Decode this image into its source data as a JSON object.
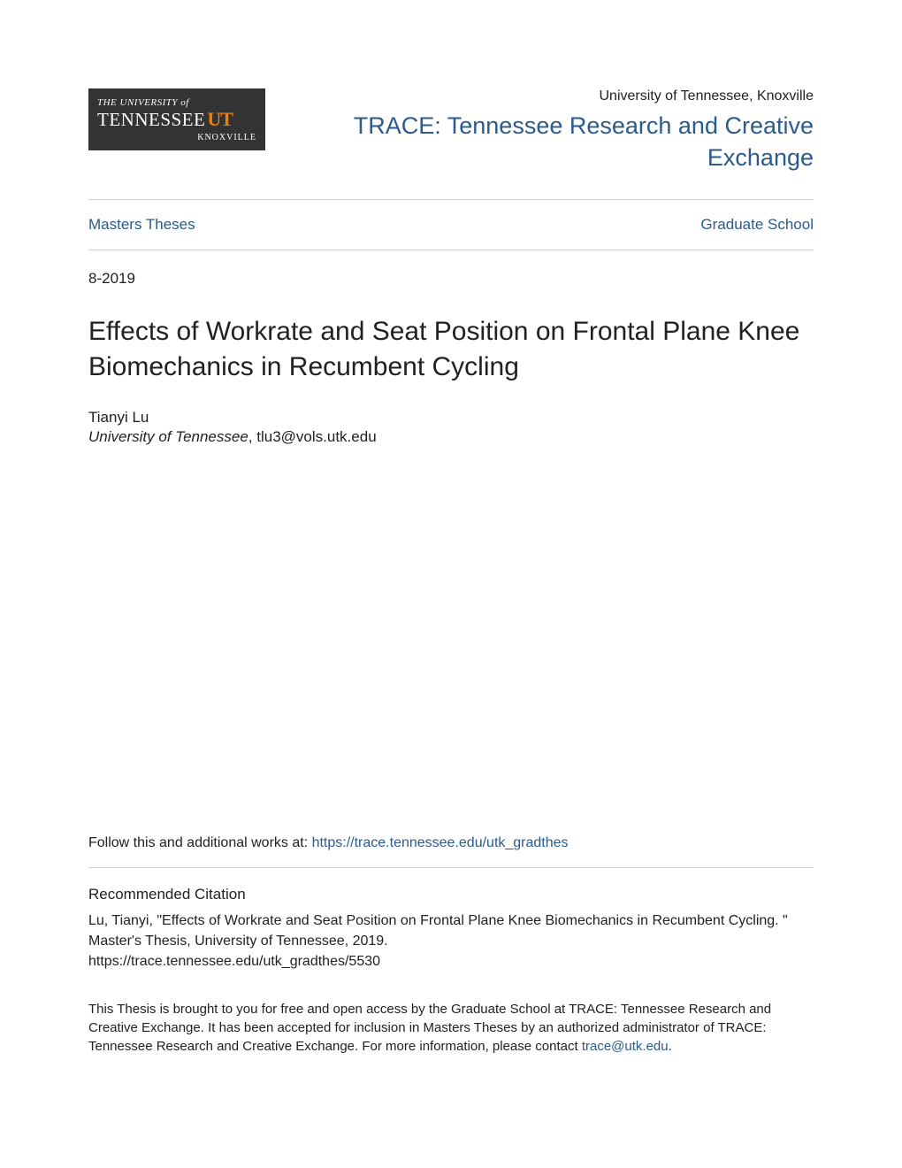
{
  "colors": {
    "link": "#2b5b8c",
    "text": "#212121",
    "rule": "#cfcfcf",
    "logo_bg": "#333333",
    "logo_fg": "#ffffff",
    "logo_accent": "#f77f00",
    "page_bg": "#ffffff"
  },
  "typography": {
    "body_family": "Helvetica Neue, Helvetica, Arial, sans-serif",
    "logo_family": "Georgia, Times New Roman, serif",
    "title_size_pt": 30,
    "trace_size_pt": 27,
    "body_size_pt": 17,
    "small_size_pt": 16,
    "disclaimer_size_pt": 15
  },
  "logo": {
    "line1": "THE UNIVERSITY of",
    "line2": "TENNESSEE",
    "accent": "UT",
    "line3": "KNOXVILLE"
  },
  "header": {
    "university": "University of Tennessee, Knoxville",
    "repository_title": "TRACE: Tennessee Research and Creative Exchange"
  },
  "nav": {
    "left": "Masters Theses",
    "right": "Graduate School"
  },
  "date": "8-2019",
  "title": "Effects of Workrate and Seat Position on Frontal Plane Knee Biomechanics in Recumbent Cycling",
  "author": {
    "name": "Tianyi Lu",
    "affiliation_italic": "University of Tennessee",
    "affiliation_rest": ", tlu3@vols.utk.edu"
  },
  "follow": {
    "prefix": "Follow this and additional works at: ",
    "link_text": "https://trace.tennessee.edu/utk_gradthes"
  },
  "citation": {
    "heading": "Recommended Citation",
    "body": "Lu, Tianyi, \"Effects of Workrate and Seat Position on Frontal Plane Knee Biomechanics in Recumbent Cycling. \" Master's Thesis, University of Tennessee, 2019.",
    "url": "https://trace.tennessee.edu/utk_gradthes/5530"
  },
  "disclaimer": {
    "text": "This Thesis is brought to you for free and open access by the Graduate School at TRACE: Tennessee Research and Creative Exchange. It has been accepted for inclusion in Masters Theses by an authorized administrator of TRACE: Tennessee Research and Creative Exchange. For more information, please contact ",
    "contact_text": "trace@utk.edu",
    "suffix": "."
  }
}
